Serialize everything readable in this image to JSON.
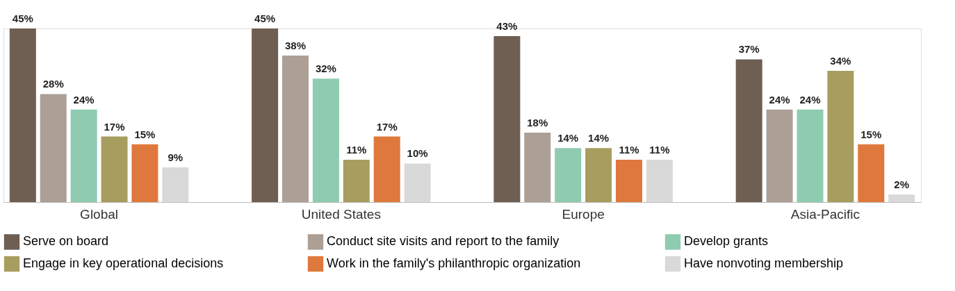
{
  "chart_data": {
    "type": "bar",
    "categories": [
      "Global",
      "United States",
      "Europe",
      "Asia-Pacific"
    ],
    "series": [
      {
        "name": "Serve on board",
        "color": "#6f5e52",
        "values": [
          45,
          45,
          43,
          37
        ],
        "value_labels": [
          "45%",
          "45%",
          "43%",
          "37%"
        ]
      },
      {
        "name": "Conduct site visits and report to the family",
        "color": "#ac9f96",
        "values": [
          28,
          38,
          18,
          24
        ],
        "value_labels": [
          "28%",
          "38%",
          "18%",
          "24%"
        ]
      },
      {
        "name": "Develop grants",
        "color": "#8fcbb0",
        "values": [
          24,
          32,
          14,
          24
        ],
        "value_labels": [
          "24%",
          "32%",
          "14%",
          "24%"
        ]
      },
      {
        "name": "Engage in key operational decisions",
        "color": "#a79d5f",
        "values": [
          17,
          11,
          14,
          34
        ],
        "value_labels": [
          "17%",
          "11%",
          "14%",
          "34%"
        ]
      },
      {
        "name": "Work in the family's philanthropic organization",
        "color": "#df783c",
        "values": [
          15,
          17,
          11,
          15
        ],
        "value_labels": [
          "15%",
          "17%",
          "11%",
          "15%"
        ]
      },
      {
        "name": "Have nonvoting membership",
        "color": "#d9d9d9",
        "values": [
          9,
          10,
          11,
          2
        ],
        "value_labels": [
          "9%",
          "10%",
          "11%",
          "2%"
        ]
      }
    ],
    "legend": "bottom",
    "grid": false
  }
}
